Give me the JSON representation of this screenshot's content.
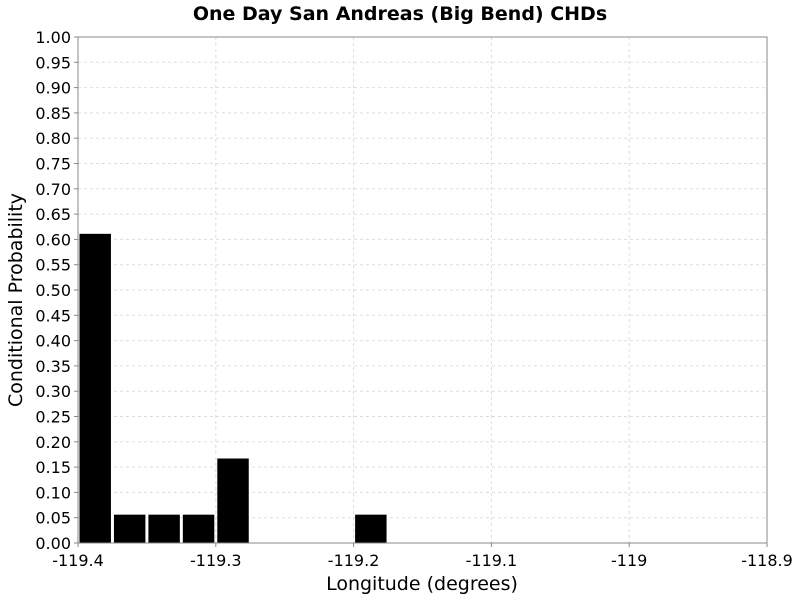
{
  "chart_data": {
    "type": "bar",
    "title": "One Day San Andreas (Big Bend) CHDs",
    "xlabel": "Longitude (degrees)",
    "ylabel": "Conditional Probability",
    "xlim": [
      -119.4,
      -118.9
    ],
    "ylim": [
      0,
      1.0
    ],
    "x_ticks": [
      "-119.4",
      "-119.3",
      "-119.2",
      "-119.1",
      "-119",
      "-118.9"
    ],
    "x_tick_values": [
      -119.4,
      -119.3,
      -119.2,
      -119.1,
      -119.0,
      -118.9
    ],
    "y_ticks": [
      "0.00",
      "0.05",
      "0.10",
      "0.15",
      "0.20",
      "0.25",
      "0.30",
      "0.35",
      "0.40",
      "0.45",
      "0.50",
      "0.55",
      "0.60",
      "0.65",
      "0.70",
      "0.75",
      "0.80",
      "0.85",
      "0.90",
      "0.95",
      "1.00"
    ],
    "y_tick_values": [
      0,
      0.05,
      0.1,
      0.15,
      0.2,
      0.25,
      0.3,
      0.35,
      0.4,
      0.45,
      0.5,
      0.55,
      0.6,
      0.65,
      0.7,
      0.75,
      0.8,
      0.85,
      0.9,
      0.95,
      1.0
    ],
    "bin_width": 0.025,
    "bars": [
      {
        "x": -119.3875,
        "value": 0.611
      },
      {
        "x": -119.3625,
        "value": 0.056
      },
      {
        "x": -119.3375,
        "value": 0.056
      },
      {
        "x": -119.3125,
        "value": 0.056
      },
      {
        "x": -119.2875,
        "value": 0.167
      },
      {
        "x": -119.1875,
        "value": 0.056
      }
    ],
    "bar_color": "#000000",
    "grid": true,
    "grid_color": "#dddddd",
    "legend": "none"
  }
}
